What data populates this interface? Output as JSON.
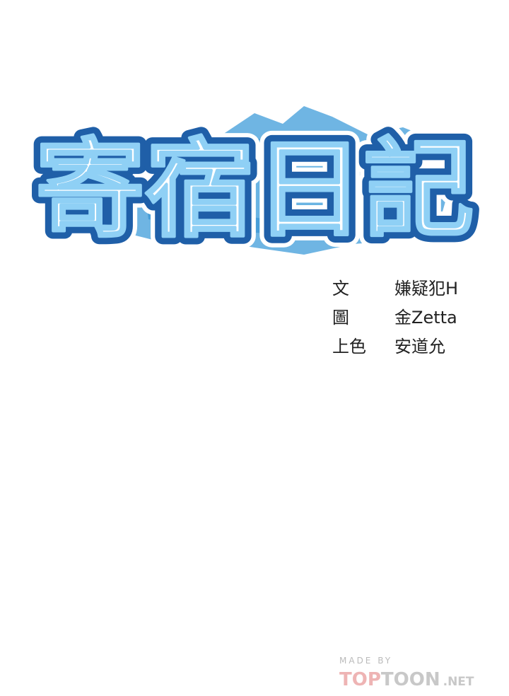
{
  "title": "寄宿日記",
  "credits": [
    {
      "role": "文",
      "name": "嫌疑犯H"
    },
    {
      "role": "圖",
      "name": "金Zetta"
    },
    {
      "role": "上色",
      "name": "安道允"
    }
  ],
  "watermark": {
    "made_by": "MADE BY",
    "brand_a": "TOP",
    "brand_b": "TOON",
    "suffix": ".NET"
  }
}
